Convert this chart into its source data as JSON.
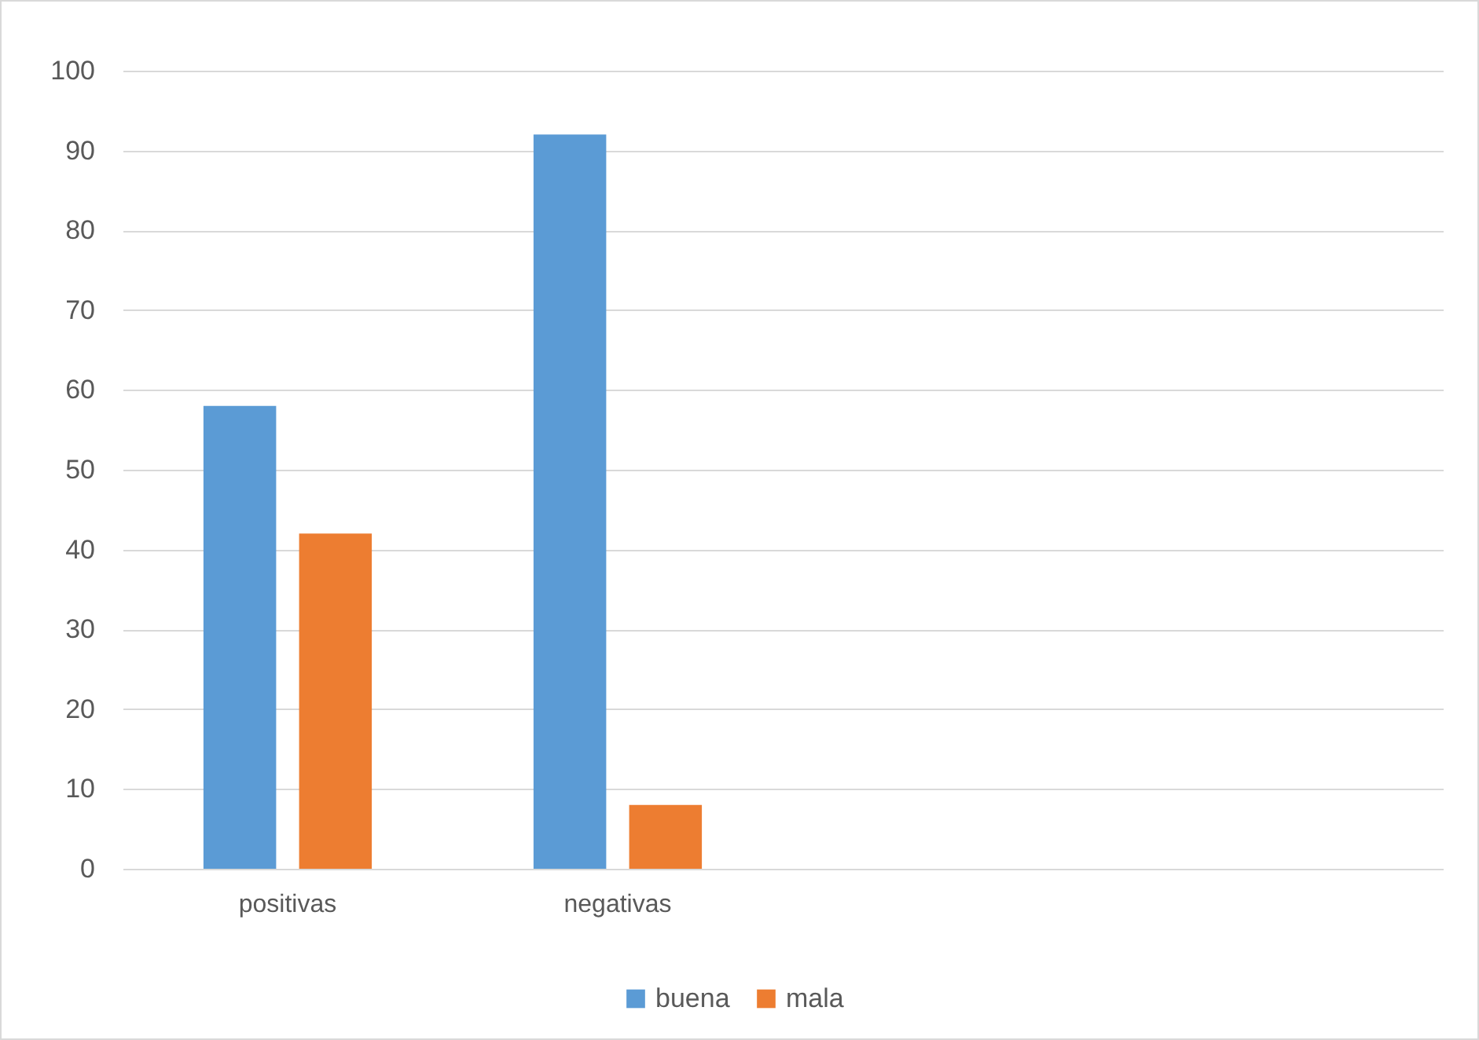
{
  "chart_data": {
    "type": "bar",
    "categories": [
      "positivas",
      "negativas",
      null,
      null
    ],
    "series": [
      {
        "name": "buena",
        "color": "#5b9bd5",
        "values": [
          58,
          92,
          null,
          null
        ]
      },
      {
        "name": "mala",
        "color": "#ed7d31",
        "values": [
          42,
          8,
          null,
          null
        ]
      }
    ],
    "ylim": [
      0,
      100
    ],
    "yticks": [
      0,
      10,
      20,
      30,
      40,
      50,
      60,
      70,
      80,
      90,
      100
    ],
    "grid": "y",
    "legend": "bottom"
  }
}
